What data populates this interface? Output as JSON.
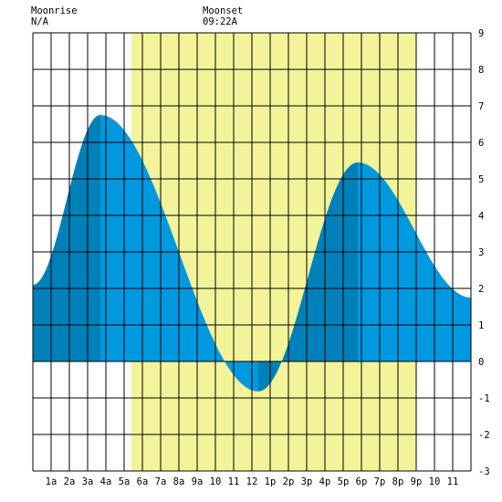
{
  "moonrise": {
    "label": "Moonrise",
    "time": "N/A"
  },
  "moonset": {
    "label": "Moonset",
    "time": "09:22A"
  },
  "chart_data": {
    "type": "area",
    "title": "",
    "xlabel": "",
    "ylabel": "",
    "xlim": [
      0,
      24
    ],
    "ylim": [
      -3,
      9
    ],
    "grid": true,
    "x_ticks": [
      {
        "x": 1,
        "label": "1a"
      },
      {
        "x": 2,
        "label": "2a"
      },
      {
        "x": 3,
        "label": "3a"
      },
      {
        "x": 4,
        "label": "4a"
      },
      {
        "x": 5,
        "label": "5a"
      },
      {
        "x": 6,
        "label": "6a"
      },
      {
        "x": 7,
        "label": "7a"
      },
      {
        "x": 8,
        "label": "8a"
      },
      {
        "x": 9,
        "label": "9a"
      },
      {
        "x": 10,
        "label": "10"
      },
      {
        "x": 11,
        "label": "11"
      },
      {
        "x": 12,
        "label": "12"
      },
      {
        "x": 13,
        "label": "1p"
      },
      {
        "x": 14,
        "label": "2p"
      },
      {
        "x": 15,
        "label": "3p"
      },
      {
        "x": 16,
        "label": "4p"
      },
      {
        "x": 17,
        "label": "5p"
      },
      {
        "x": 18,
        "label": "6p"
      },
      {
        "x": 19,
        "label": "7p"
      },
      {
        "x": 20,
        "label": "8p"
      },
      {
        "x": 21,
        "label": "9p"
      },
      {
        "x": 22,
        "label": "10"
      },
      {
        "x": 23,
        "label": "11"
      }
    ],
    "y_ticks": [
      -3,
      -2,
      -1,
      0,
      1,
      2,
      3,
      4,
      5,
      6,
      7,
      8,
      9
    ],
    "daylight": {
      "start_hour": 5.4,
      "end_hour": 21.0,
      "color": "#f3f39a"
    },
    "tide": {
      "extremes": [
        {
          "hour": 0.0,
          "height": 2.1
        },
        {
          "hour": 3.7,
          "height": 6.75
        },
        {
          "hour": 12.35,
          "height": -0.82
        },
        {
          "hour": 17.8,
          "height": 5.45
        },
        {
          "hour": 24.0,
          "height": 1.75
        }
      ],
      "fill_color": "#0099e0",
      "rising_color": "#0080b8"
    }
  }
}
